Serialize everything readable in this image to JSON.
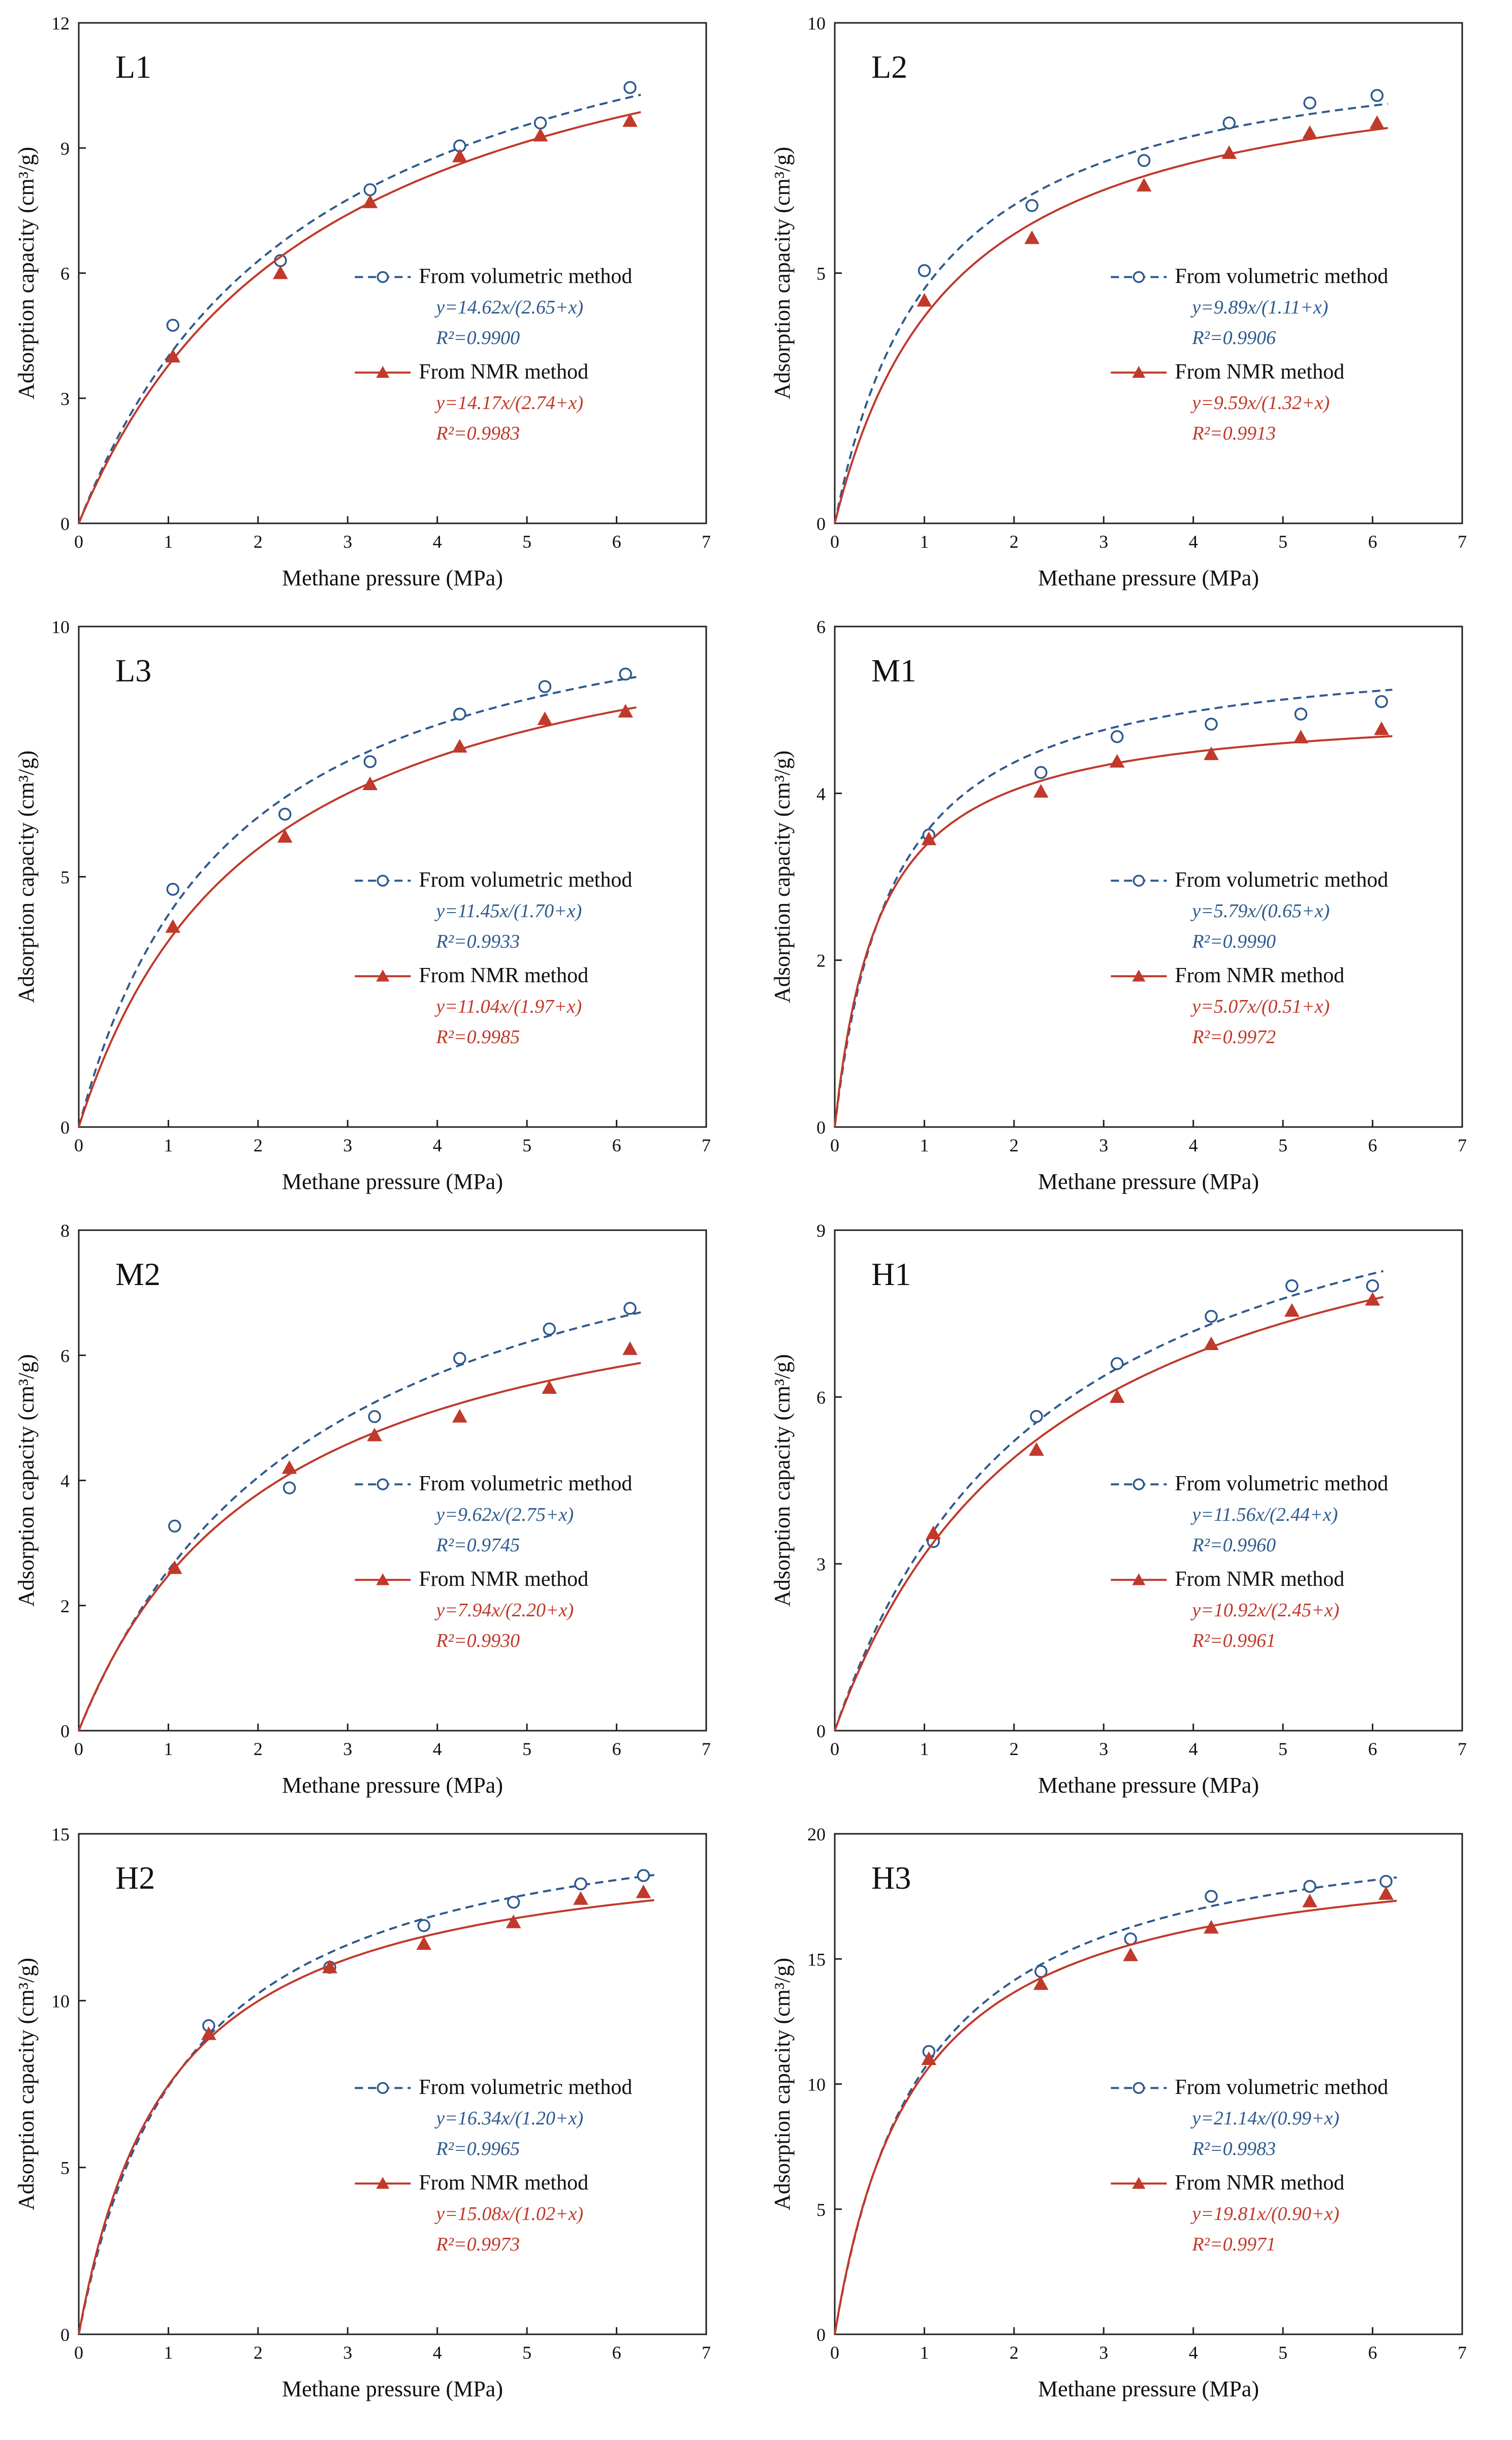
{
  "figure": {
    "xlabel": "Methane pressure (MPa)",
    "ylabel": "Adsorption capacity (cm³/g)"
  },
  "chart_data": [
    {
      "id": "L1",
      "type": "scatter+line",
      "title": "L1",
      "xlim": [
        0,
        7
      ],
      "ylim": [
        0,
        12
      ],
      "xticks": [
        0,
        1,
        2,
        3,
        4,
        5,
        6,
        7
      ],
      "yticks": [
        0,
        3,
        6,
        9,
        12
      ],
      "xlabel": "Methane pressure (MPa)",
      "ylabel": "Adsorption capacity (cm³/g)",
      "series": [
        {
          "name": "From volumetric method",
          "marker": "circle",
          "line": "dashed",
          "color": "#2e5a8e",
          "fit": {
            "a": 14.62,
            "b": 2.65
          },
          "equation": "y=14.62x/(2.65+x)",
          "r2": "R²=0.9900",
          "x": [
            1.05,
            2.25,
            3.25,
            4.25,
            5.15,
            6.15
          ],
          "y": [
            4.75,
            6.3,
            8.0,
            9.05,
            9.6,
            10.45
          ]
        },
        {
          "name": "From NMR method",
          "marker": "triangle",
          "line": "solid",
          "color": "#c0392b",
          "fit": {
            "a": 14.17,
            "b": 2.74
          },
          "equation": "y=14.17x/(2.74+x)",
          "r2": "R²=0.9983",
          "x": [
            1.05,
            2.25,
            3.25,
            4.25,
            5.15,
            6.15
          ],
          "y": [
            4.0,
            6.0,
            7.7,
            8.8,
            9.3,
            9.65
          ]
        }
      ]
    },
    {
      "id": "L2",
      "type": "scatter+line",
      "title": "L2",
      "xlim": [
        0,
        7
      ],
      "ylim": [
        0,
        10
      ],
      "xticks": [
        0,
        1,
        2,
        3,
        4,
        5,
        6,
        7
      ],
      "yticks": [
        0,
        5,
        10
      ],
      "xlabel": "Methane pressure (MPa)",
      "ylabel": "Adsorption capacity (cm³/g)",
      "series": [
        {
          "name": "From volumetric method",
          "marker": "circle",
          "line": "dashed",
          "color": "#2e5a8e",
          "fit": {
            "a": 9.89,
            "b": 1.11
          },
          "equation": "y=9.89x/(1.11+x)",
          "r2": "R²=0.9906",
          "x": [
            1.0,
            2.2,
            3.45,
            4.4,
            5.3,
            6.05
          ],
          "y": [
            5.05,
            6.35,
            7.25,
            8.0,
            8.4,
            8.55
          ]
        },
        {
          "name": "From NMR method",
          "marker": "triangle",
          "line": "solid",
          "color": "#c0392b",
          "fit": {
            "a": 9.59,
            "b": 1.32
          },
          "equation": "y=9.59x/(1.32+x)",
          "r2": "R²=0.9913",
          "x": [
            1.0,
            2.2,
            3.45,
            4.4,
            5.3,
            6.05
          ],
          "y": [
            4.45,
            5.7,
            6.75,
            7.4,
            7.8,
            8.0
          ]
        }
      ]
    },
    {
      "id": "L3",
      "type": "scatter+line",
      "title": "L3",
      "xlim": [
        0,
        7
      ],
      "ylim": [
        0,
        10
      ],
      "xticks": [
        0,
        1,
        2,
        3,
        4,
        5,
        6,
        7
      ],
      "yticks": [
        0,
        5,
        10
      ],
      "xlabel": "Methane pressure (MPa)",
      "ylabel": "Adsorption capacity (cm³/g)",
      "series": [
        {
          "name": "From volumetric method",
          "marker": "circle",
          "line": "dashed",
          "color": "#2e5a8e",
          "fit": {
            "a": 11.45,
            "b": 1.7
          },
          "equation": "y=11.45x/(1.70+x)",
          "r2": "R²=0.9933",
          "x": [
            1.05,
            2.3,
            3.25,
            4.25,
            5.2,
            6.1
          ],
          "y": [
            4.75,
            6.25,
            7.3,
            8.25,
            8.8,
            9.05
          ]
        },
        {
          "name": "From NMR method",
          "marker": "triangle",
          "line": "solid",
          "color": "#c0392b",
          "fit": {
            "a": 11.04,
            "b": 1.97
          },
          "equation": "y=11.04x/(1.97+x)",
          "r2": "R²=0.9985",
          "x": [
            1.05,
            2.3,
            3.25,
            4.25,
            5.2,
            6.1
          ],
          "y": [
            4.0,
            5.8,
            6.85,
            7.6,
            8.15,
            8.3
          ]
        }
      ]
    },
    {
      "id": "M1",
      "type": "scatter+line",
      "title": "M1",
      "xlim": [
        0,
        7
      ],
      "ylim": [
        0,
        6
      ],
      "xticks": [
        0,
        1,
        2,
        3,
        4,
        5,
        6,
        7
      ],
      "yticks": [
        0,
        2,
        4,
        6
      ],
      "xlabel": "Methane pressure (MPa)",
      "ylabel": "Adsorption capacity (cm³/g)",
      "series": [
        {
          "name": "From volumetric method",
          "marker": "circle",
          "line": "dashed",
          "color": "#2e5a8e",
          "fit": {
            "a": 5.79,
            "b": 0.65
          },
          "equation": "y=5.79x/(0.65+x)",
          "r2": "R²=0.9990",
          "x": [
            1.05,
            2.3,
            3.15,
            4.2,
            5.2,
            6.1
          ],
          "y": [
            3.5,
            4.25,
            4.68,
            4.83,
            4.95,
            5.1
          ]
        },
        {
          "name": "From NMR method",
          "marker": "triangle",
          "line": "solid",
          "color": "#c0392b",
          "fit": {
            "a": 5.07,
            "b": 0.51
          },
          "equation": "y=5.07x/(0.51+x)",
          "r2": "R²=0.9972",
          "x": [
            1.05,
            2.3,
            3.15,
            4.2,
            5.2,
            6.1
          ],
          "y": [
            3.45,
            4.02,
            4.38,
            4.47,
            4.67,
            4.77
          ]
        }
      ]
    },
    {
      "id": "M2",
      "type": "scatter+line",
      "title": "M2",
      "xlim": [
        0,
        7
      ],
      "ylim": [
        0,
        8
      ],
      "xticks": [
        0,
        1,
        2,
        3,
        4,
        5,
        6,
        7
      ],
      "yticks": [
        0,
        2,
        4,
        6,
        8
      ],
      "xlabel": "Methane pressure (MPa)",
      "ylabel": "Adsorption capacity (cm³/g)",
      "series": [
        {
          "name": "From volumetric method",
          "marker": "circle",
          "line": "dashed",
          "color": "#2e5a8e",
          "fit": {
            "a": 9.62,
            "b": 2.75
          },
          "equation": "y=9.62x/(2.75+x)",
          "r2": "R²=0.9745",
          "x": [
            1.07,
            2.35,
            3.3,
            4.25,
            5.25,
            6.15
          ],
          "y": [
            3.27,
            3.88,
            5.02,
            5.95,
            6.42,
            6.75
          ]
        },
        {
          "name": "From NMR method",
          "marker": "triangle",
          "line": "solid",
          "color": "#c0392b",
          "fit": {
            "a": 7.94,
            "b": 2.2
          },
          "equation": "y=7.94x/(2.20+x)",
          "r2": "R²=0.9930",
          "x": [
            1.07,
            2.35,
            3.3,
            4.25,
            5.25,
            6.15
          ],
          "y": [
            2.6,
            4.2,
            4.72,
            5.02,
            5.48,
            6.1
          ]
        }
      ]
    },
    {
      "id": "H1",
      "type": "scatter+line",
      "title": "H1",
      "xlim": [
        0,
        7
      ],
      "ylim": [
        0,
        9
      ],
      "xticks": [
        0,
        1,
        2,
        3,
        4,
        5,
        6,
        7
      ],
      "yticks": [
        0,
        3,
        6,
        9
      ],
      "xlabel": "Methane pressure (MPa)",
      "ylabel": "Adsorption capacity (cm³/g)",
      "series": [
        {
          "name": "From volumetric method",
          "marker": "circle",
          "line": "dashed",
          "color": "#2e5a8e",
          "fit": {
            "a": 11.56,
            "b": 2.44
          },
          "equation": "y=11.56x/(2.44+x)",
          "r2": "R²=0.9960",
          "x": [
            1.1,
            2.25,
            3.15,
            4.2,
            5.1,
            6.0
          ],
          "y": [
            3.4,
            5.65,
            6.6,
            7.45,
            8.0,
            8.0
          ]
        },
        {
          "name": "From NMR method",
          "marker": "triangle",
          "line": "solid",
          "color": "#c0392b",
          "fit": {
            "a": 10.92,
            "b": 2.45
          },
          "equation": "y=10.92x/(2.45+x)",
          "r2": "R²=0.9961",
          "x": [
            1.1,
            2.25,
            3.15,
            4.2,
            5.1,
            6.0
          ],
          "y": [
            3.55,
            5.05,
            6.0,
            6.95,
            7.55,
            7.75
          ]
        }
      ]
    },
    {
      "id": "H2",
      "type": "scatter+line",
      "title": "H2",
      "xlim": [
        0,
        7
      ],
      "ylim": [
        0,
        15
      ],
      "xticks": [
        0,
        1,
        2,
        3,
        4,
        5,
        6,
        7
      ],
      "yticks": [
        0,
        5,
        10,
        15
      ],
      "xlabel": "Methane pressure (MPa)",
      "ylabel": "Adsorption capacity (cm³/g)",
      "series": [
        {
          "name": "From volumetric method",
          "marker": "circle",
          "line": "dashed",
          "color": "#2e5a8e",
          "fit": {
            "a": 16.34,
            "b": 1.2
          },
          "equation": "y=16.34x/(1.20+x)",
          "r2": "R²=0.9965",
          "x": [
            1.45,
            2.8,
            3.85,
            4.85,
            5.6,
            6.3
          ],
          "y": [
            9.25,
            11.0,
            12.25,
            12.95,
            13.5,
            13.75
          ]
        },
        {
          "name": "From NMR method",
          "marker": "triangle",
          "line": "solid",
          "color": "#c0392b",
          "fit": {
            "a": 15.08,
            "b": 1.02
          },
          "equation": "y=15.08x/(1.02+x)",
          "r2": "R²=0.9973",
          "x": [
            1.45,
            2.8,
            3.85,
            4.85,
            5.6,
            6.3
          ],
          "y": [
            9.0,
            11.0,
            11.7,
            12.35,
            13.05,
            13.25
          ]
        }
      ]
    },
    {
      "id": "H3",
      "type": "scatter+line",
      "title": "H3",
      "xlim": [
        0,
        7
      ],
      "ylim": [
        0,
        20
      ],
      "xticks": [
        0,
        1,
        2,
        3,
        4,
        5,
        6,
        7
      ],
      "yticks": [
        0,
        5,
        10,
        15,
        20
      ],
      "xlabel": "Methane pressure (MPa)",
      "ylabel": "Adsorption capacity (cm³/g)",
      "series": [
        {
          "name": "From volumetric method",
          "marker": "circle",
          "line": "dashed",
          "color": "#2e5a8e",
          "fit": {
            "a": 21.14,
            "b": 0.99
          },
          "equation": "y=21.14x/(0.99+x)",
          "r2": "R²=0.9983",
          "x": [
            1.05,
            2.3,
            3.3,
            4.2,
            5.3,
            6.15
          ],
          "y": [
            11.3,
            14.5,
            15.8,
            17.5,
            17.9,
            18.1
          ]
        },
        {
          "name": "From NMR method",
          "marker": "triangle",
          "line": "solid",
          "color": "#c0392b",
          "fit": {
            "a": 19.81,
            "b": 0.9
          },
          "equation": "y=19.81x/(0.90+x)",
          "r2": "R²=0.9971",
          "x": [
            1.05,
            2.3,
            3.3,
            4.2,
            5.3,
            6.15
          ],
          "y": [
            11.0,
            14.0,
            15.15,
            16.25,
            17.3,
            17.6
          ]
        }
      ]
    }
  ]
}
